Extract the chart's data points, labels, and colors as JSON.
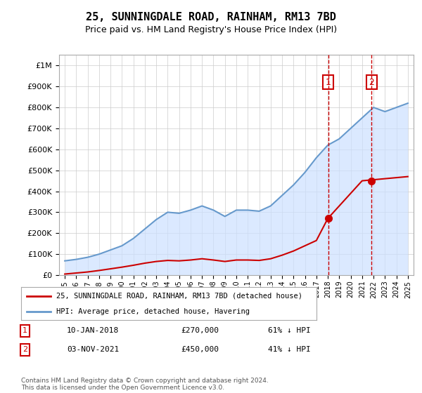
{
  "title": "25, SUNNINGDALE ROAD, RAINHAM, RM13 7BD",
  "subtitle": "Price paid vs. HM Land Registry's House Price Index (HPI)",
  "ylabel_ticks": [
    "£0",
    "£100K",
    "£200K",
    "£300K",
    "£400K",
    "£500K",
    "£600K",
    "£700K",
    "£800K",
    "£900K",
    "£1M"
  ],
  "ytick_values": [
    0,
    100000,
    200000,
    300000,
    400000,
    500000,
    600000,
    700000,
    800000,
    900000,
    1000000
  ],
  "ylim": [
    0,
    1050000
  ],
  "legend_line1": "25, SUNNINGDALE ROAD, RAINHAM, RM13 7BD (detached house)",
  "legend_line2": "HPI: Average price, detached house, Havering",
  "annotation1_label": "1",
  "annotation1_date": "10-JAN-2018",
  "annotation1_price": "£270,000",
  "annotation1_hpi": "61% ↓ HPI",
  "annotation2_label": "2",
  "annotation2_date": "03-NOV-2021",
  "annotation2_price": "£450,000",
  "annotation2_hpi": "41% ↓ HPI",
  "footnote": "Contains HM Land Registry data © Crown copyright and database right 2024.\nThis data is licensed under the Open Government Licence v3.0.",
  "hpi_color": "#6699cc",
  "hpi_fill_color": "#cce0ff",
  "price_color": "#cc0000",
  "vline_color": "#cc0000",
  "annotation_box_color": "#cc0000",
  "background_color": "#ffffff",
  "grid_color": "#cccccc",
  "hpi_data": {
    "years": [
      1995,
      1996,
      1997,
      1998,
      1999,
      2000,
      2001,
      2002,
      2003,
      2004,
      2005,
      2006,
      2007,
      2008,
      2009,
      2010,
      2011,
      2012,
      2013,
      2014,
      2015,
      2016,
      2017,
      2018,
      2019,
      2020,
      2021,
      2022,
      2023,
      2024,
      2025
    ],
    "values": [
      68000,
      75000,
      85000,
      100000,
      120000,
      140000,
      175000,
      220000,
      265000,
      300000,
      295000,
      310000,
      330000,
      310000,
      280000,
      310000,
      310000,
      305000,
      330000,
      380000,
      430000,
      490000,
      560000,
      620000,
      650000,
      700000,
      750000,
      800000,
      780000,
      800000,
      820000
    ]
  },
  "price_paid_data": {
    "years": [
      1995,
      1996,
      1997,
      1998,
      1999,
      2000,
      2001,
      2002,
      2003,
      2004,
      2005,
      2006,
      2007,
      2008,
      2009,
      2010,
      2011,
      2012,
      2013,
      2014,
      2015,
      2016,
      2017,
      2018,
      2021,
      2022,
      2023,
      2024,
      2025
    ],
    "values": [
      5000,
      10000,
      15000,
      22000,
      30000,
      38000,
      47000,
      57000,
      65000,
      70000,
      68000,
      72000,
      78000,
      72000,
      65000,
      72000,
      72000,
      70000,
      78000,
      95000,
      115000,
      140000,
      165000,
      270000,
      450000,
      455000,
      460000,
      465000,
      470000
    ]
  },
  "sale1_year": 2018.03,
  "sale1_price": 270000,
  "sale2_year": 2021.84,
  "sale2_price": 450000
}
